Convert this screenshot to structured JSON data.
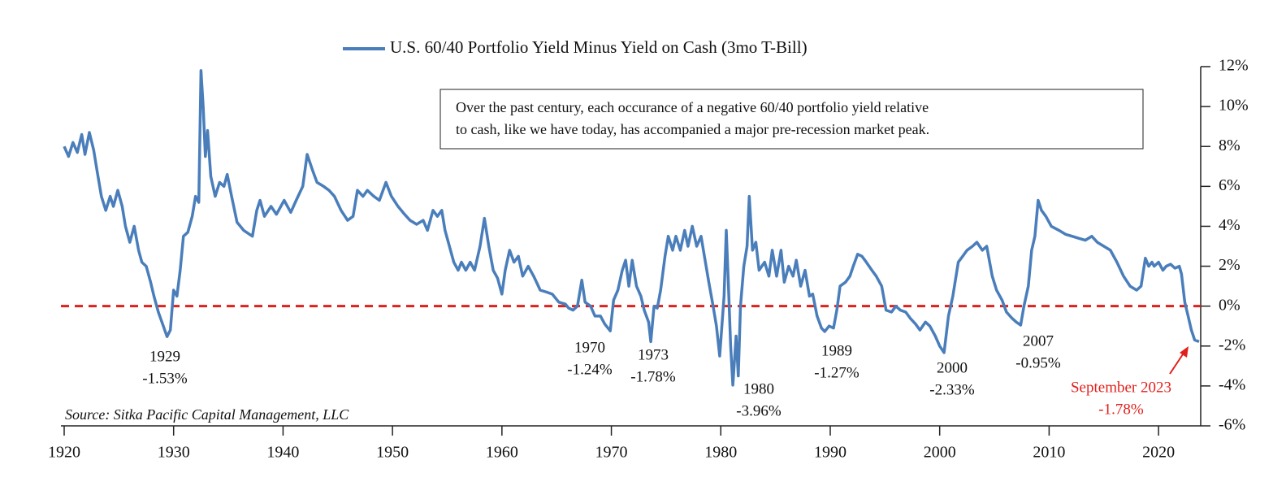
{
  "chart_data": {
    "type": "line",
    "note": "Over the past century, each occurance of a negative 60/40 portfolio yield relative to cash, like we have today, has accompanied a major pre-recession market peak.",
    "note_lines": [
      "Over the past century, each occurance of a negative 60/40 portfolio yield relative",
      "to cash, like we have today, has accompanied a major pre-recession market peak."
    ],
    "source": "Source: Sitka Pacific Capital Management, LLC",
    "legend": "top",
    "xlim": [
      1920,
      2024
    ],
    "xticks": [
      1920,
      1930,
      1940,
      1950,
      1960,
      1970,
      1980,
      1990,
      2000,
      2010,
      2020
    ],
    "ylim": [
      -6,
      12
    ],
    "yticks": [
      {
        "value": -6,
        "label": "-6%"
      },
      {
        "value": -4,
        "label": "-4%"
      },
      {
        "value": -2,
        "label": "-2%"
      },
      {
        "value": 0,
        "label": "0%"
      },
      {
        "value": 2,
        "label": "2%"
      },
      {
        "value": 4,
        "label": "4%"
      },
      {
        "value": 6,
        "label": "6%"
      },
      {
        "value": 8,
        "label": "8%"
      },
      {
        "value": 10,
        "label": "10%"
      },
      {
        "value": 12,
        "label": "12%"
      }
    ],
    "reference_line": {
      "value": 0,
      "color": "#e0201b"
    },
    "annotations": [
      {
        "lines": [
          "1929",
          "-1.53%"
        ]
      },
      {
        "lines": [
          "1970",
          "-1.24%"
        ]
      },
      {
        "lines": [
          "1973",
          "-1.78%"
        ]
      },
      {
        "lines": [
          "1980",
          "-3.96%"
        ]
      },
      {
        "lines": [
          "1989",
          "-1.27%"
        ]
      },
      {
        "lines": [
          "2000",
          "-2.33%"
        ]
      },
      {
        "lines": [
          "2007",
          "-0.95%"
        ]
      },
      {
        "lines": [
          "September 2023",
          "-1.78%"
        ],
        "color": "#e0201b"
      }
    ],
    "x": [
      1920.0,
      1920.4,
      1920.8,
      1921.2,
      1921.6,
      1921.9,
      1922.3,
      1922.7,
      1923.0,
      1923.4,
      1923.8,
      1924.2,
      1924.5,
      1924.9,
      1925.3,
      1925.6,
      1926.0,
      1926.4,
      1926.8,
      1927.1,
      1927.5,
      1927.9,
      1928.2,
      1928.6,
      1929.0,
      1929.4,
      1929.7,
      1930.0,
      1930.3,
      1930.6,
      1930.9,
      1931.3,
      1931.7,
      1932.0,
      1932.3,
      1932.5,
      1932.7,
      1932.9,
      1933.1,
      1933.4,
      1933.8,
      1934.2,
      1934.6,
      1934.9,
      1935.3,
      1935.8,
      1936.4,
      1937.2,
      1937.6,
      1937.9,
      1938.3,
      1938.9,
      1939.4,
      1940.1,
      1940.7,
      1941.2,
      1941.8,
      1942.2,
      1942.7,
      1943.1,
      1943.7,
      1944.2,
      1944.7,
      1945.3,
      1945.9,
      1946.4,
      1946.8,
      1947.3,
      1947.7,
      1948.3,
      1948.8,
      1949.4,
      1949.9,
      1950.5,
      1951.1,
      1951.6,
      1952.2,
      1952.8,
      1953.2,
      1953.7,
      1954.1,
      1954.5,
      1954.8,
      1955.2,
      1955.6,
      1956.0,
      1956.3,
      1956.7,
      1957.1,
      1957.5,
      1958.0,
      1958.4,
      1958.8,
      1959.2,
      1959.6,
      1960.0,
      1960.3,
      1960.7,
      1961.1,
      1961.5,
      1961.9,
      1962.4,
      1962.9,
      1963.5,
      1964.1,
      1964.6,
      1965.2,
      1965.8,
      1966.1,
      1966.5,
      1966.9,
      1967.3,
      1967.6,
      1968.1,
      1968.5,
      1969.0,
      1969.4,
      1969.9,
      1970.2,
      1970.6,
      1971.0,
      1971.3,
      1971.6,
      1971.9,
      1972.3,
      1972.7,
      1973.0,
      1973.4,
      1973.6,
      1973.9,
      1974.2,
      1974.5,
      1974.9,
      1975.2,
      1975.6,
      1975.9,
      1976.3,
      1976.7,
      1977.0,
      1977.4,
      1977.8,
      1978.2,
      1978.5,
      1978.9,
      1979.3,
      1979.6,
      1979.9,
      1980.3,
      1980.5,
      1980.7,
      1980.9,
      1981.1,
      1981.4,
      1981.6,
      1981.8,
      1982.1,
      1982.4,
      1982.6,
      1982.9,
      1983.2,
      1983.5,
      1984.0,
      1984.4,
      1984.7,
      1985.1,
      1985.5,
      1985.8,
      1986.2,
      1986.6,
      1986.9,
      1987.3,
      1987.7,
      1988.1,
      1988.4,
      1988.8,
      1989.2,
      1989.5,
      1989.9,
      1990.3,
      1990.6,
      1990.9,
      1991.4,
      1991.8,
      1992.1,
      1992.5,
      1992.9,
      1993.3,
      1993.8,
      1994.2,
      1994.7,
      1995.1,
      1995.6,
      1996.0,
      1996.4,
      1996.9,
      1997.3,
      1997.8,
      1998.2,
      1998.7,
      1999.1,
      1999.6,
      2000.0,
      2000.4,
      2000.8,
      2001.2,
      2001.7,
      2002.1,
      2002.5,
      2003.0,
      2003.4,
      2003.9,
      2004.3,
      2004.8,
      2005.2,
      2005.7,
      2006.1,
      2006.6,
      2007.0,
      2007.4,
      2007.7,
      2008.1,
      2008.4,
      2008.7,
      2009.0,
      2009.3,
      2009.7,
      2010.2,
      2010.9,
      2011.5,
      2012.1,
      2012.7,
      2013.3,
      2013.9,
      2014.4,
      2015.0,
      2015.6,
      2016.2,
      2016.8,
      2017.4,
      2018.0,
      2018.4,
      2018.8,
      2019.1,
      2019.4,
      2019.6,
      2020.0,
      2020.4,
      2020.7,
      2021.1,
      2021.5,
      2021.9,
      2022.1,
      2022.4,
      2022.7,
      2023.0,
      2023.3,
      2023.7
    ],
    "series": [
      {
        "name": "U.S. 60/40 Portfolio Yield Minus Yield on Cash (3mo T-Bill)",
        "color": "#4a7ebb",
        "values": [
          8.0,
          7.5,
          8.2,
          7.7,
          8.6,
          7.6,
          8.7,
          7.8,
          6.8,
          5.5,
          4.8,
          5.5,
          5.0,
          5.8,
          5.0,
          4.0,
          3.2,
          4.0,
          2.8,
          2.2,
          2.0,
          1.2,
          0.5,
          -0.3,
          -0.9,
          -1.53,
          -1.2,
          0.8,
          0.5,
          1.8,
          3.5,
          3.7,
          4.5,
          5.5,
          5.2,
          11.8,
          10.0,
          7.5,
          8.8,
          6.5,
          5.5,
          6.2,
          6.0,
          6.6,
          5.5,
          4.2,
          3.8,
          3.5,
          4.8,
          5.3,
          4.5,
          5.0,
          4.6,
          5.3,
          4.7,
          5.3,
          6.0,
          7.6,
          6.8,
          6.2,
          6.0,
          5.8,
          5.5,
          4.8,
          4.3,
          4.5,
          5.8,
          5.5,
          5.8,
          5.5,
          5.3,
          6.2,
          5.5,
          5.0,
          4.6,
          4.3,
          4.1,
          4.3,
          3.8,
          4.8,
          4.5,
          4.8,
          3.8,
          3.0,
          2.2,
          1.8,
          2.2,
          1.8,
          2.2,
          1.8,
          3.0,
          4.4,
          3.0,
          1.8,
          1.4,
          0.6,
          1.8,
          2.8,
          2.2,
          2.5,
          1.5,
          2.0,
          1.5,
          0.8,
          0.7,
          0.6,
          0.2,
          0.1,
          -0.1,
          -0.2,
          0.0,
          1.3,
          0.2,
          0.0,
          -0.5,
          -0.5,
          -0.9,
          -1.24,
          0.3,
          0.8,
          1.8,
          2.3,
          1.0,
          2.3,
          1.0,
          0.5,
          -0.2,
          -0.8,
          -1.78,
          0.0,
          -0.1,
          0.8,
          2.5,
          3.5,
          2.8,
          3.5,
          2.8,
          3.8,
          3.0,
          4.0,
          3.0,
          3.5,
          2.5,
          1.2,
          0.0,
          -1.0,
          -2.5,
          0.5,
          3.8,
          1.0,
          -2.0,
          -3.96,
          -1.5,
          -3.5,
          0.0,
          2.0,
          3.0,
          5.5,
          2.8,
          3.2,
          1.8,
          2.2,
          1.5,
          2.8,
          1.5,
          2.8,
          1.2,
          2.0,
          1.5,
          2.3,
          1.0,
          1.8,
          0.5,
          0.6,
          -0.5,
          -1.1,
          -1.27,
          -1.0,
          -1.1,
          -0.2,
          1.0,
          1.2,
          1.5,
          2.0,
          2.6,
          2.5,
          2.2,
          1.8,
          1.5,
          1.0,
          -0.2,
          -0.3,
          0.0,
          -0.2,
          -0.3,
          -0.6,
          -0.9,
          -1.2,
          -0.8,
          -1.0,
          -1.5,
          -2.0,
          -2.33,
          -0.5,
          0.5,
          2.2,
          2.5,
          2.8,
          3.0,
          3.2,
          2.8,
          3.0,
          1.5,
          0.8,
          0.3,
          -0.3,
          -0.6,
          -0.8,
          -0.95,
          0.0,
          1.0,
          2.8,
          3.5,
          5.3,
          4.8,
          4.5,
          4.0,
          3.8,
          3.6,
          3.5,
          3.4,
          3.3,
          3.5,
          3.2,
          3.0,
          2.8,
          2.2,
          1.5,
          1.0,
          0.8,
          1.0,
          2.4,
          2.0,
          2.2,
          2.0,
          2.2,
          1.8,
          2.0,
          2.1,
          1.9,
          2.0,
          1.6,
          0.2,
          -0.5,
          -1.2,
          -1.7,
          -1.78
        ]
      }
    ]
  }
}
